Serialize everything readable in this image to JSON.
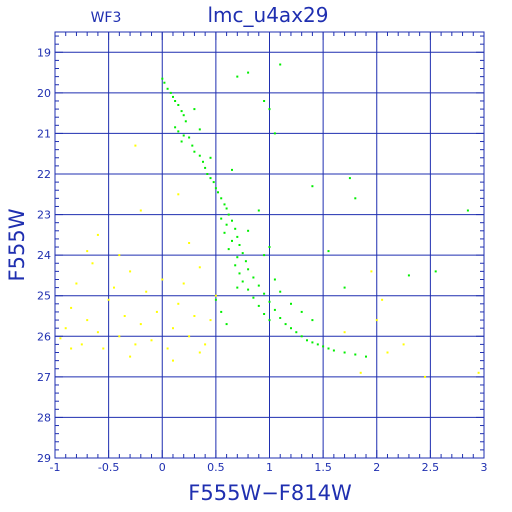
{
  "chart_data": {
    "type": "scatter",
    "title": "lmc_u4ax29",
    "subtitle": "WF3",
    "xlabel": "F555W−F814W",
    "ylabel": "F555W",
    "xlim": [
      -1,
      3
    ],
    "ylim": [
      29,
      18.5
    ],
    "y_inverted": true,
    "grid": true,
    "x_ticks": [
      -1,
      0,
      1,
      2,
      3
    ],
    "x_tick_labels": [
      "-1",
      "-0.5",
      "0",
      "0.5",
      "1",
      "1.5",
      "2",
      "2.5",
      "3"
    ],
    "x_tick_values": [
      -1,
      -0.5,
      0,
      0.5,
      1,
      1.5,
      2,
      2.5,
      3
    ],
    "y_ticks": [
      19,
      20,
      21,
      22,
      23,
      24,
      25,
      26,
      27,
      28,
      29
    ],
    "y_tick_labels": [
      "19",
      "20",
      "21",
      "22",
      "23",
      "24",
      "25",
      "26",
      "27",
      "28",
      "29"
    ],
    "series": [
      {
        "color": "#00ee00",
        "points": [
          [
            0.0,
            19.65
          ],
          [
            0.02,
            19.75
          ],
          [
            0.05,
            19.9
          ],
          [
            0.08,
            20.0
          ],
          [
            0.1,
            20.1
          ],
          [
            0.12,
            20.2
          ],
          [
            0.15,
            20.3
          ],
          [
            0.18,
            20.45
          ],
          [
            0.2,
            20.55
          ],
          [
            0.22,
            20.7
          ],
          [
            0.12,
            20.85
          ],
          [
            0.15,
            20.95
          ],
          [
            0.2,
            21.05
          ],
          [
            0.25,
            21.1
          ],
          [
            0.18,
            21.2
          ],
          [
            0.28,
            21.3
          ],
          [
            0.3,
            21.45
          ],
          [
            0.35,
            21.55
          ],
          [
            0.38,
            21.7
          ],
          [
            0.4,
            21.85
          ],
          [
            0.42,
            22.0
          ],
          [
            0.45,
            22.1
          ],
          [
            0.48,
            22.2
          ],
          [
            0.5,
            22.35
          ],
          [
            0.52,
            22.45
          ],
          [
            0.55,
            22.6
          ],
          [
            0.58,
            22.75
          ],
          [
            0.6,
            22.85
          ],
          [
            0.62,
            23.0
          ],
          [
            0.55,
            23.1
          ],
          [
            0.65,
            23.15
          ],
          [
            0.6,
            23.25
          ],
          [
            0.68,
            23.35
          ],
          [
            0.58,
            23.45
          ],
          [
            0.7,
            23.55
          ],
          [
            0.65,
            23.65
          ],
          [
            0.72,
            23.75
          ],
          [
            0.62,
            23.85
          ],
          [
            0.75,
            23.95
          ],
          [
            0.7,
            24.05
          ],
          [
            0.78,
            24.15
          ],
          [
            0.68,
            24.25
          ],
          [
            0.8,
            24.35
          ],
          [
            0.72,
            24.45
          ],
          [
            0.85,
            24.55
          ],
          [
            0.75,
            24.65
          ],
          [
            0.9,
            24.75
          ],
          [
            0.8,
            24.85
          ],
          [
            0.95,
            24.95
          ],
          [
            0.85,
            25.05
          ],
          [
            1.0,
            25.15
          ],
          [
            0.9,
            25.25
          ],
          [
            1.05,
            25.35
          ],
          [
            0.95,
            25.45
          ],
          [
            1.1,
            25.55
          ],
          [
            1.0,
            25.6
          ],
          [
            1.15,
            25.7
          ],
          [
            1.2,
            25.8
          ],
          [
            1.25,
            25.9
          ],
          [
            1.3,
            26.0
          ],
          [
            1.35,
            26.1
          ],
          [
            1.4,
            26.15
          ],
          [
            1.45,
            26.2
          ],
          [
            1.5,
            26.25
          ],
          [
            1.55,
            26.3
          ],
          [
            1.6,
            26.35
          ],
          [
            1.7,
            26.4
          ],
          [
            1.8,
            26.45
          ],
          [
            1.9,
            26.5
          ],
          [
            0.95,
            24.0
          ],
          [
            1.05,
            24.6
          ],
          [
            1.1,
            24.9
          ],
          [
            1.2,
            25.2
          ],
          [
            1.3,
            25.4
          ],
          [
            1.4,
            25.6
          ],
          [
            0.5,
            25.1
          ],
          [
            0.55,
            25.4
          ],
          [
            0.6,
            25.7
          ],
          [
            0.7,
            24.8
          ],
          [
            0.8,
            23.4
          ],
          [
            0.9,
            22.9
          ],
          [
            1.0,
            23.8
          ],
          [
            1.05,
            21.0
          ],
          [
            0.95,
            20.2
          ],
          [
            1.0,
            20.4
          ],
          [
            0.8,
            19.5
          ],
          [
            1.1,
            19.3
          ],
          [
            0.7,
            19.6
          ],
          [
            1.8,
            22.6
          ],
          [
            2.3,
            24.5
          ],
          [
            2.55,
            24.4
          ],
          [
            2.85,
            22.9
          ],
          [
            1.7,
            24.8
          ],
          [
            1.55,
            23.9
          ],
          [
            1.75,
            22.1
          ],
          [
            1.4,
            22.3
          ],
          [
            0.35,
            20.9
          ],
          [
            0.45,
            21.6
          ],
          [
            0.3,
            20.4
          ],
          [
            0.65,
            21.9
          ]
        ]
      },
      {
        "color": "#ffff00",
        "points": [
          [
            -0.95,
            26.05
          ],
          [
            -0.9,
            25.8
          ],
          [
            -0.85,
            25.3
          ],
          [
            -0.8,
            24.7
          ],
          [
            -0.75,
            26.2
          ],
          [
            -0.7,
            25.6
          ],
          [
            -0.65,
            24.2
          ],
          [
            -0.6,
            25.9
          ],
          [
            -0.55,
            26.3
          ],
          [
            -0.5,
            25.1
          ],
          [
            -0.45,
            24.8
          ],
          [
            -0.4,
            26.0
          ],
          [
            -0.35,
            25.5
          ],
          [
            -0.3,
            24.4
          ],
          [
            -0.25,
            26.2
          ],
          [
            -0.2,
            25.7
          ],
          [
            -0.15,
            24.9
          ],
          [
            -0.1,
            26.1
          ],
          [
            -0.05,
            25.4
          ],
          [
            0.0,
            24.6
          ],
          [
            0.05,
            26.3
          ],
          [
            0.1,
            25.8
          ],
          [
            0.15,
            25.2
          ],
          [
            0.2,
            24.7
          ],
          [
            0.25,
            26.0
          ],
          [
            0.3,
            25.5
          ],
          [
            0.35,
            24.3
          ],
          [
            0.4,
            26.2
          ],
          [
            0.45,
            25.6
          ],
          [
            0.5,
            25.0
          ],
          [
            -0.6,
            23.5
          ],
          [
            -0.4,
            24.0
          ],
          [
            -0.2,
            22.9
          ],
          [
            0.15,
            22.5
          ],
          [
            0.25,
            23.7
          ],
          [
            -0.7,
            23.9
          ],
          [
            -0.3,
            26.5
          ],
          [
            0.1,
            26.6
          ],
          [
            0.35,
            26.4
          ],
          [
            -0.85,
            26.3
          ],
          [
            1.95,
            24.4
          ],
          [
            2.0,
            25.6
          ],
          [
            2.1,
            26.4
          ],
          [
            2.25,
            26.2
          ],
          [
            2.45,
            27.0
          ],
          [
            2.95,
            26.9
          ],
          [
            1.85,
            26.9
          ],
          [
            1.7,
            25.9
          ],
          [
            -0.25,
            21.3
          ],
          [
            2.05,
            25.1
          ]
        ]
      }
    ]
  }
}
